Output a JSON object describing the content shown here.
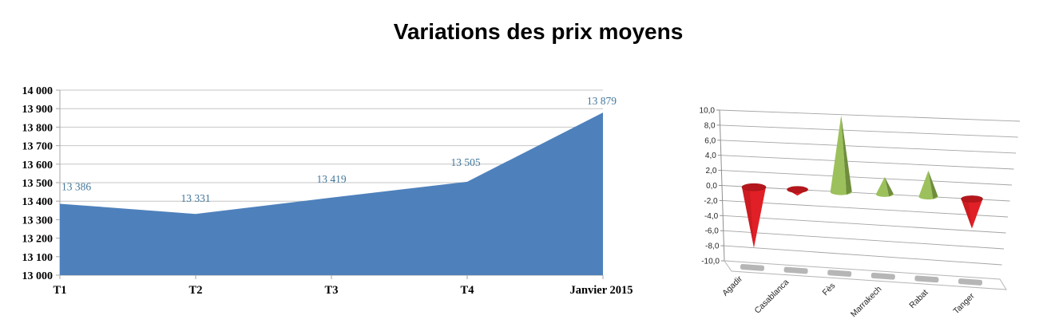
{
  "title": "Variations des prix moyens",
  "colors": {
    "area_fill": "#4E81BC",
    "data_label": "#44789B",
    "gridline": "#C6C6C6",
    "axis": "#A6A6A6",
    "axis_text": "#000000",
    "grid3d": "#A4A4A4",
    "axis3d": "#8F8F8F",
    "floor_edge": "#B5B5B5",
    "floor_dash": "#A9A9A9",
    "label3d": "#262626",
    "cone_positive": "#9CC15C",
    "cone_positive_dark": "#6F8D3D",
    "cone_negative": "#E02026",
    "cone_negative_dark": "#B5161C"
  },
  "chart_data": [
    {
      "type": "area",
      "name": "variation-prix-moyens-trimestres",
      "categories": [
        "T1",
        "T2",
        "T3",
        "T4",
        "Janvier 2015"
      ],
      "values": [
        13386,
        13331,
        13419,
        13505,
        13879
      ],
      "point_labels": [
        "13 386",
        "13 331",
        "13 419",
        "13 505",
        "13 879"
      ],
      "ylim": [
        13000,
        14000
      ],
      "ytick_step": 100,
      "ytick_labels": [
        "14 000",
        "13 900",
        "13 800",
        "13 700",
        "13 600",
        "13 500",
        "13 400",
        "13 300",
        "13 200",
        "13 100",
        "13 000"
      ],
      "grid": true,
      "legend": "none",
      "fill_color": "#4E81BC"
    },
    {
      "type": "bar",
      "style": "3d-cone",
      "name": "variation-prix-par-ville",
      "categories": [
        "Agadir",
        "Casablanca",
        "Fès",
        "Marrakech",
        "Rabat",
        "Tanger"
      ],
      "values": [
        -8.0,
        -0.8,
        9.9,
        2.2,
        3.3,
        -3.7
      ],
      "ylim": [
        -10,
        10
      ],
      "ytick_step": 2,
      "ytick_labels": [
        "10,0",
        "8,0",
        "6,0",
        "4,0",
        "2,0",
        "0,0",
        "-2,0",
        "-4,0",
        "-6,0",
        "-8,0",
        "-10,0"
      ],
      "grid": true,
      "legend": "none",
      "positive_color": "#9CC15C",
      "negative_color": "#E02026"
    }
  ]
}
